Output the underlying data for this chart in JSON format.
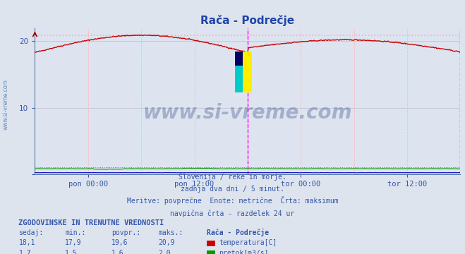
{
  "title": "Rača - Podrečje",
  "background_color": "#dde4ee",
  "plot_bg_color": "#dde4f0",
  "ylabel": "",
  "xlabel": "",
  "xlim": [
    0,
    576
  ],
  "ylim": [
    0,
    22
  ],
  "temp_max": 20.9,
  "temp_max_line_color": "#ffaaaa",
  "temp_line_color": "#cc0000",
  "flow_line_color": "#009900",
  "flow_max_line_color": "#00cc00",
  "height_line_color": "#0000bb",
  "magenta_vline_x": 288,
  "magenta_vline2_x": 576,
  "watermark_text": "www.si-vreme.com",
  "watermark_color": "#1a3a7a",
  "watermark_alpha": 0.3,
  "xtick_labels": [
    "pon 00:00",
    "pon 12:00",
    "tor 00:00",
    "tor 12:00"
  ],
  "footer_lines": [
    "Slovenija / reke in morje.",
    "zadnja dva dni / 5 minut.",
    "Meritve: povprečne  Enote: metrične  Črta: maksimum",
    "navpična črta - razdelek 24 ur"
  ],
  "table_title": "ZGODOVINSKE IN TRENUTNE VREDNOSTI",
  "table_headers": [
    "sedaj:",
    "min.:",
    "povpr.:",
    "maks.:",
    "Rača - Podrečje"
  ],
  "table_row1": [
    "18,1",
    "17,9",
    "19,6",
    "20,9"
  ],
  "table_row2": [
    "1,7",
    "1,5",
    "1,6",
    "2,0"
  ],
  "legend_temp": "temperatura[C]",
  "legend_flow": "pretok[m3/s]",
  "temp_color_box": "#cc0000",
  "flow_color_box": "#009900",
  "text_color": "#3355aa",
  "left_label_color": "#6688bb",
  "title_color": "#2244aa"
}
